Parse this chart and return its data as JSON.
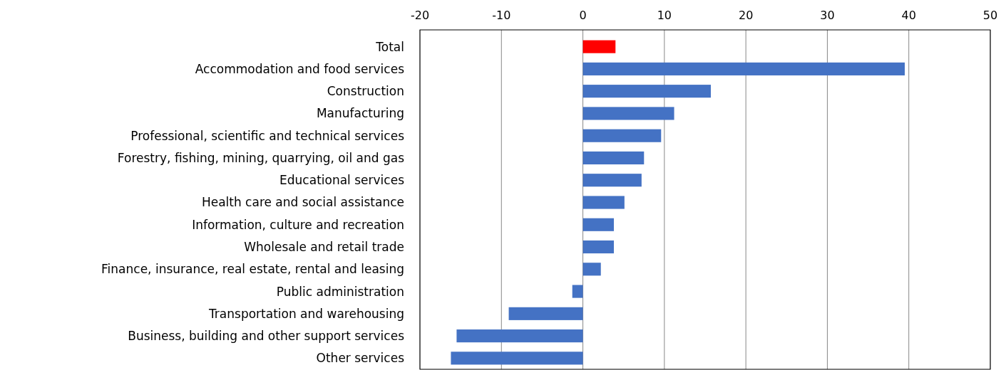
{
  "chart_data": {
    "type": "bar",
    "orientation": "horizontal",
    "categories": [
      "Total",
      "Accommodation and food services",
      "Construction",
      "Manufacturing",
      "Professional, scientific and technical services",
      "Forestry, fishing, mining, quarrying, oil and gas",
      "Educational services",
      "Health care and social assistance",
      "Information, culture and recreation",
      "Wholesale and retail trade",
      "Finance, insurance, real estate, rental and leasing",
      "Public administration",
      "Transportation and warehousing",
      "Business, building and other support services",
      "Other services"
    ],
    "values": [
      4.0,
      39.5,
      15.7,
      11.2,
      9.6,
      7.5,
      7.2,
      5.1,
      3.8,
      3.8,
      2.2,
      -1.3,
      -9.1,
      -15.5,
      -16.2
    ],
    "colors": [
      "#ff0000",
      "#4472c4",
      "#4472c4",
      "#4472c4",
      "#4472c4",
      "#4472c4",
      "#4472c4",
      "#4472c4",
      "#4472c4",
      "#4472c4",
      "#4472c4",
      "#4472c4",
      "#4472c4",
      "#4472c4",
      "#4472c4"
    ],
    "xlim": [
      -20,
      50
    ],
    "xticks": [
      -20,
      -10,
      0,
      10,
      20,
      30,
      40,
      50
    ],
    "grid": "x"
  }
}
